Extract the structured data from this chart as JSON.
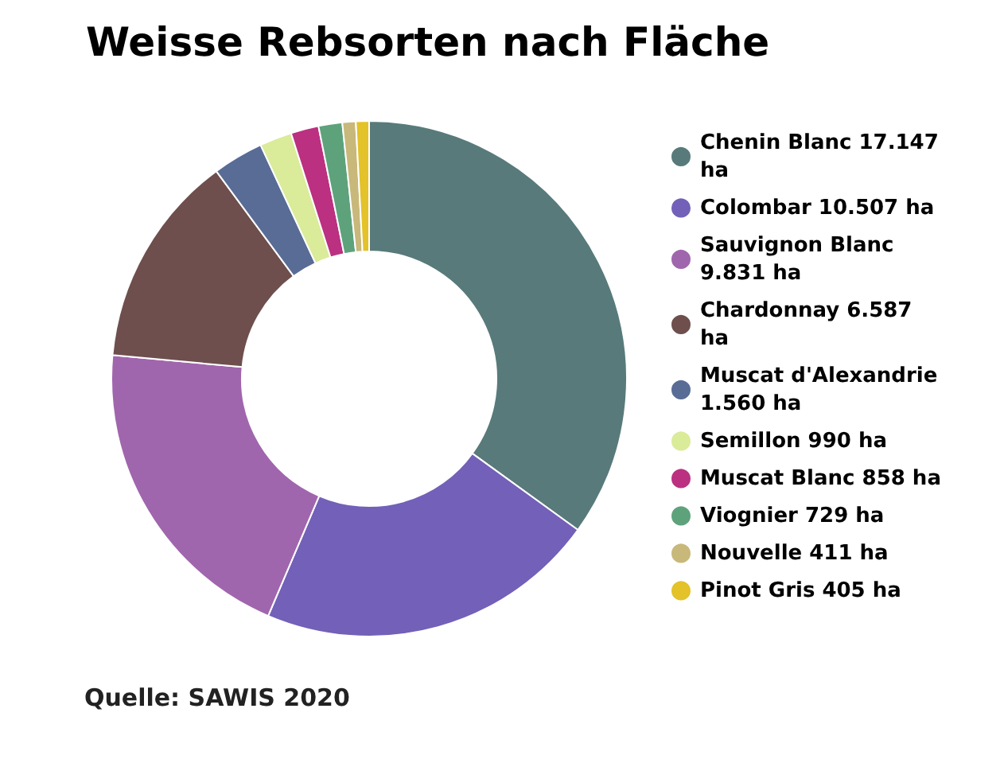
{
  "chart_data": {
    "type": "donut",
    "title": "Weisse Rebsorten nach Fläche",
    "categories": [
      "Chenin Blanc",
      "Colombar",
      "Sauvignon Blanc",
      "Chardonnay",
      "Muscat d'Alexandrie",
      "Semillon",
      "Muscat Blanc",
      "Viognier",
      "Nouvelle",
      "Pinot Gris"
    ],
    "values": [
      17147,
      10507,
      9831,
      6587,
      1560,
      990,
      858,
      729,
      411,
      405
    ],
    "value_labels": [
      "17.147 ha",
      "10.507 ha",
      "9.831 ha",
      "6.587 ha",
      "1.560 ha",
      "990 ha",
      "858 ha",
      "729 ha",
      "411 ha",
      "405 ha"
    ],
    "colors": [
      "#587a7a",
      "#7360b8",
      "#a066ad",
      "#6e4f4d",
      "#586c96",
      "#daeb9a",
      "#bb3080",
      "#5ea27c",
      "#c8b87a",
      "#e3c22a"
    ],
    "legend": "right",
    "annotations": [
      "Quelle: SAWIS 2020"
    ]
  }
}
